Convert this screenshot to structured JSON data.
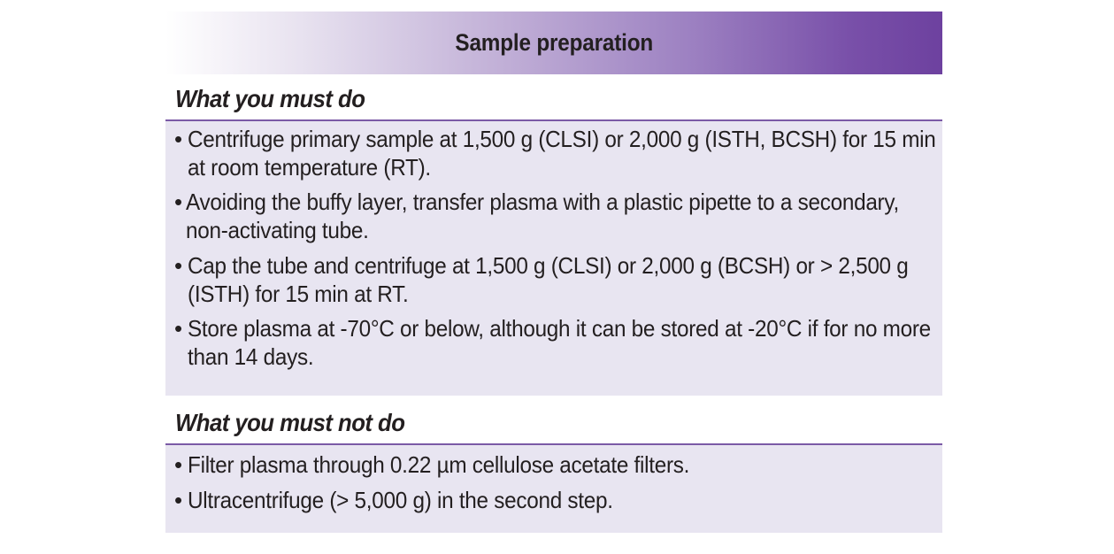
{
  "title": "Sample preparation",
  "sections": {
    "must_do": {
      "heading": "What you must do",
      "items": [
        [
          "Centrifuge primary sample at 1,500 g (CLSI) or 2,000 g (ISTH, BCSH) for 15 min",
          "at room temperature (RT)."
        ],
        [
          "Avoiding the buffy layer, transfer plasma with a plastic pipette to a secondary,",
          "non-activating tube."
        ],
        [
          "Cap the tube and centrifuge at 1,500 g (CLSI) or 2,000 g (BCSH) or > 2,500 g",
          "(ISTH) for 15 min at RT."
        ],
        [
          "Store plasma at -70°C or below, although it can be stored at -20°C if for no more",
          "than 14 days."
        ]
      ]
    },
    "must_not_do": {
      "heading": "What you must not do",
      "items": [
        [
          "Filter plasma through 0.22 µm cellulose acetate filters."
        ],
        [
          "Ultracentrifuge (> 5,000 g) in the second step."
        ]
      ]
    }
  },
  "bullet_glyph": "•",
  "colors": {
    "accent_purple": "#6d419f",
    "rule_purple": "#7b5aa6",
    "body_background": "#e8e5f1",
    "text": "#231f20"
  }
}
